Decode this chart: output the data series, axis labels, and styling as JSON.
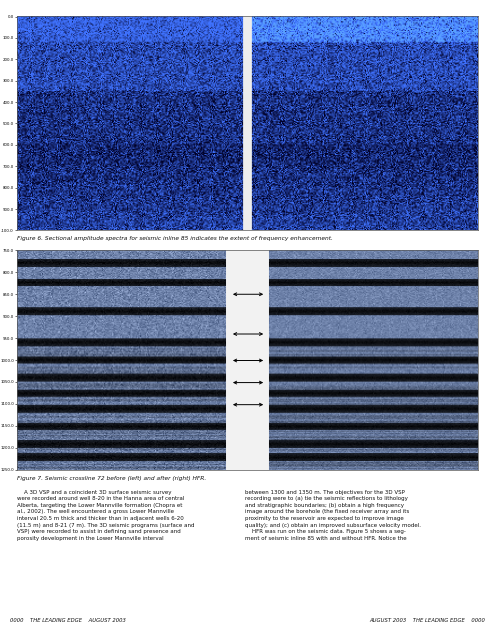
{
  "bg_color": "#ffffff",
  "fig6_caption": "Figure 6. Sectional amplitude spectra for seismic inline 85 indicates the extent of frequency enhancement.",
  "fig7_caption": "Figure 7. Seismic crossline 72 before (left) and after (right) HFR.",
  "footer_left": "0000    THE LEADING EDGE    AUGUST 2003",
  "footer_right": "AUGUST 2003    THE LEADING EDGE    0000",
  "body_left": "    A 3D VSP and a coincident 3D surface seismic survey\nwere recorded around well 8-20 in the Hanna area of central\nAlberta, targeting the Lower Mannville formation (Chopra et\nal., 2002). The well encountered a gross Lower Mannville\ninterval 20.5 m thick and thicker than in adjacent wells 6-20\n(11.5 m) and 8-21 (7 m). The 3D seismic programs (surface and\nVSP) were recorded to assist in defining sand presence and\nporosity development in the Lower Mannville interval",
  "body_right": "between 1300 and 1350 m. The objectives for the 3D VSP\nrecording were to (a) tie the seismic reflections to lithology\nand stratigraphic boundaries; (b) obtain a high frequency\nimage around the borehole (the fixed receiver array and its\nproximity to the reservoir are expected to improve image\nquality); and (c) obtain an improved subsurface velocity model.\n    HFR was run on the seismic data. Figure 5 shows a seg-\nment of seismic inline 85 with and without HFR. Notice the"
}
